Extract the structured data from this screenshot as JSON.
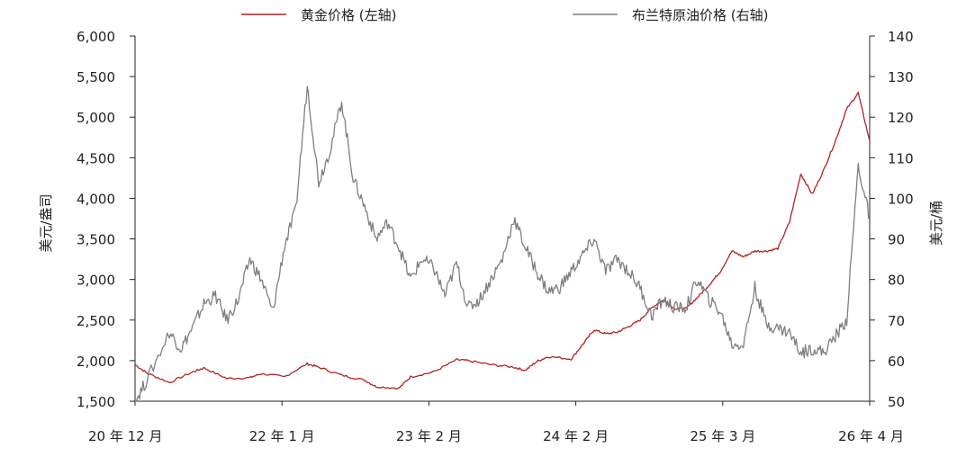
{
  "chart_data": {
    "type": "line",
    "title": "",
    "legend_position": "top",
    "grid": false,
    "x_ticks": [
      "20 年 12 月",
      "22 年 1 月",
      "23 年 2 月",
      "24 年 2 月",
      "25 年 3 月",
      "26 年 4 月"
    ],
    "left_axis": {
      "label": "美元/盎司",
      "ylim": [
        1500,
        6000
      ],
      "ticks": [
        "1,500",
        "2,000",
        "2,500",
        "3,000",
        "3,500",
        "4,000",
        "4,500",
        "5,000",
        "5,500",
        "6,000"
      ]
    },
    "right_axis": {
      "label": "美元/桶",
      "ylim": [
        50,
        140
      ],
      "ticks": [
        "50",
        "60",
        "70",
        "80",
        "90",
        "100",
        "110",
        "120",
        "130",
        "140"
      ]
    },
    "series": [
      {
        "name": "黄金价格 (左轴)",
        "axis": "left",
        "color": "#b22222",
        "points": [
          [
            "2020-12",
            1950
          ],
          [
            "2021-01",
            1850
          ],
          [
            "2021-03",
            1730
          ],
          [
            "2021-05",
            1860
          ],
          [
            "2021-06",
            1910
          ],
          [
            "2021-08",
            1780
          ],
          [
            "2021-10",
            1790
          ],
          [
            "2021-11",
            1840
          ],
          [
            "2022-01",
            1800
          ],
          [
            "2022-03",
            1960
          ],
          [
            "2022-04",
            1920
          ],
          [
            "2022-06",
            1820
          ],
          [
            "2022-08",
            1760
          ],
          [
            "2022-09",
            1680
          ],
          [
            "2022-11",
            1660
          ],
          [
            "2022-12",
            1800
          ],
          [
            "2023-02",
            1860
          ],
          [
            "2023-04",
            2010
          ],
          [
            "2023-05",
            2000
          ],
          [
            "2023-07",
            1950
          ],
          [
            "2023-09",
            1920
          ],
          [
            "2023-10",
            1880
          ],
          [
            "2023-11",
            1990
          ],
          [
            "2023-12",
            2050
          ],
          [
            "2024-02",
            2020
          ],
          [
            "2024-03",
            2200
          ],
          [
            "2024-04",
            2380
          ],
          [
            "2024-05",
            2330
          ],
          [
            "2024-06",
            2350
          ],
          [
            "2024-07",
            2420
          ],
          [
            "2024-08",
            2500
          ],
          [
            "2024-09",
            2650
          ],
          [
            "2024-10",
            2750
          ],
          [
            "2024-11",
            2640
          ],
          [
            "2024-12",
            2640
          ],
          [
            "2025-01",
            2780
          ],
          [
            "2025-02",
            2930
          ],
          [
            "2025-03",
            3100
          ],
          [
            "2025-04",
            3350
          ],
          [
            "2025-05",
            3280
          ],
          [
            "2025-06",
            3350
          ],
          [
            "2025-07",
            3350
          ],
          [
            "2025-08",
            3380
          ],
          [
            "2025-09",
            3700
          ],
          [
            "2025-10",
            4300
          ],
          [
            "2025-11",
            4050
          ],
          [
            "2025-12",
            4350
          ],
          [
            "2026-01",
            4700
          ],
          [
            "2026-02",
            5100
          ],
          [
            "2026-03",
            5300
          ],
          [
            "2026-04",
            4700
          ]
        ]
      },
      {
        "name": "布兰特原油价格 (右轴)",
        "axis": "right",
        "color": "#7f7f7f",
        "points": [
          [
            "2020-12",
            50
          ],
          [
            "2021-01",
            55
          ],
          [
            "2021-03",
            67
          ],
          [
            "2021-04",
            63
          ],
          [
            "2021-05",
            68
          ],
          [
            "2021-06",
            74
          ],
          [
            "2021-07",
            76
          ],
          [
            "2021-08",
            70
          ],
          [
            "2021-09",
            75
          ],
          [
            "2021-10",
            85
          ],
          [
            "2021-11",
            80
          ],
          [
            "2021-12",
            72
          ],
          [
            "2022-01",
            88
          ],
          [
            "2022-02",
            97
          ],
          [
            "2022-03",
            128
          ],
          [
            "2022-04",
            104
          ],
          [
            "2022-05",
            112
          ],
          [
            "2022-06",
            124
          ],
          [
            "2022-07",
            105
          ],
          [
            "2022-08",
            98
          ],
          [
            "2022-09",
            90
          ],
          [
            "2022-10",
            94
          ],
          [
            "2022-11",
            88
          ],
          [
            "2022-12",
            80
          ],
          [
            "2023-01",
            85
          ],
          [
            "2023-02",
            83
          ],
          [
            "2023-03",
            76
          ],
          [
            "2023-04",
            84
          ],
          [
            "2023-05",
            73
          ],
          [
            "2023-06",
            75
          ],
          [
            "2023-07",
            80
          ],
          [
            "2023-08",
            85
          ],
          [
            "2023-09",
            95
          ],
          [
            "2023-10",
            88
          ],
          [
            "2023-11",
            82
          ],
          [
            "2023-12",
            77
          ],
          [
            "2024-01",
            78
          ],
          [
            "2024-02",
            82
          ],
          [
            "2024-03",
            86
          ],
          [
            "2024-04",
            90
          ],
          [
            "2024-05",
            82
          ],
          [
            "2024-06",
            85
          ],
          [
            "2024-07",
            82
          ],
          [
            "2024-08",
            78
          ],
          [
            "2024-09",
            71
          ],
          [
            "2024-10",
            75
          ],
          [
            "2024-11",
            73
          ],
          [
            "2024-12",
            73
          ],
          [
            "2025-01",
            80
          ],
          [
            "2025-02",
            75
          ],
          [
            "2025-03",
            72
          ],
          [
            "2025-04",
            64
          ],
          [
            "2025-05",
            64
          ],
          [
            "2025-06",
            78
          ],
          [
            "2025-07",
            69
          ],
          [
            "2025-08",
            68
          ],
          [
            "2025-09",
            67
          ],
          [
            "2025-10",
            62
          ],
          [
            "2025-11",
            63
          ],
          [
            "2025-12",
            62
          ],
          [
            "2026-01",
            66
          ],
          [
            "2026-02",
            70
          ],
          [
            "2026-03",
            108
          ],
          [
            "2026-04",
            95
          ]
        ]
      }
    ]
  }
}
